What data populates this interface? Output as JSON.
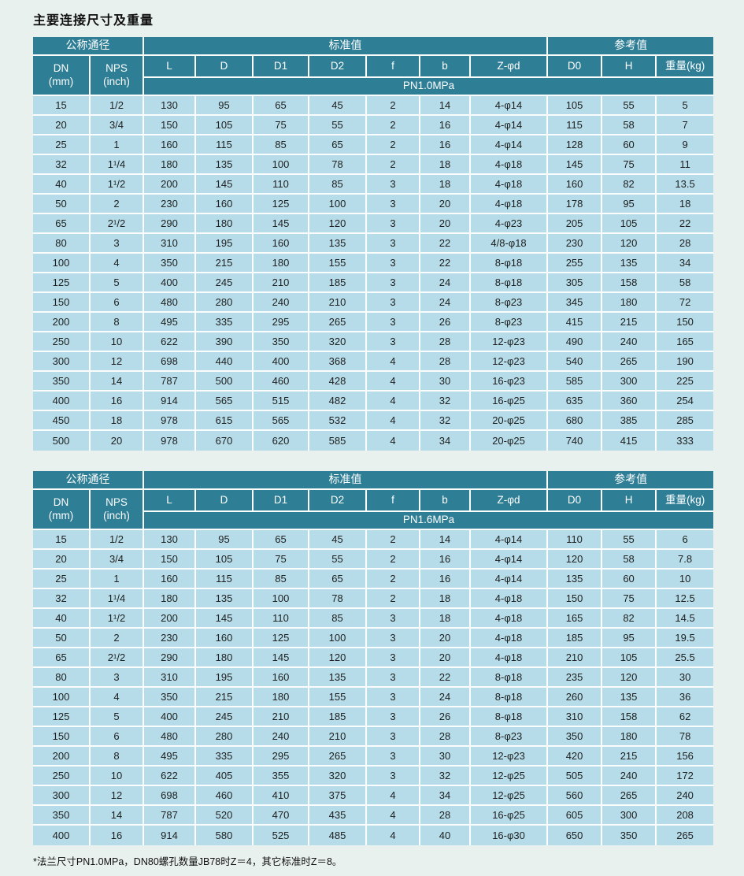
{
  "page": {
    "title": "主要连接尺寸及重量",
    "footnote": "*法兰尺寸PN1.0MPa，DN80螺孔数量JB78时Z＝4，其它标准时Z＝8。"
  },
  "tables": [
    {
      "pressure_class": "PN1.0MPa",
      "groups": {
        "nominal": "公称通径",
        "standard": "标准值",
        "reference": "参考值"
      },
      "columns": [
        "DN\n(mm)",
        "NPS\n(inch)",
        "L",
        "D",
        "D1",
        "D2",
        "f",
        "b",
        "Z-φd",
        "D0",
        "H",
        "重量(kg)"
      ],
      "rows": [
        [
          "15",
          "1/2",
          "130",
          "95",
          "65",
          "45",
          "2",
          "14",
          "4-φ14",
          "105",
          "55",
          "5"
        ],
        [
          "20",
          "3/4",
          "150",
          "105",
          "75",
          "55",
          "2",
          "16",
          "4-φ14",
          "115",
          "58",
          "7"
        ],
        [
          "25",
          "1",
          "160",
          "115",
          "85",
          "65",
          "2",
          "16",
          "4-φ14",
          "128",
          "60",
          "9"
        ],
        [
          "32",
          "1¹/4",
          "180",
          "135",
          "100",
          "78",
          "2",
          "18",
          "4-φ18",
          "145",
          "75",
          "11"
        ],
        [
          "40",
          "1¹/2",
          "200",
          "145",
          "110",
          "85",
          "3",
          "18",
          "4-φ18",
          "160",
          "82",
          "13.5"
        ],
        [
          "50",
          "2",
          "230",
          "160",
          "125",
          "100",
          "3",
          "20",
          "4-φ18",
          "178",
          "95",
          "18"
        ],
        [
          "65",
          "2¹/2",
          "290",
          "180",
          "145",
          "120",
          "3",
          "20",
          "4-φ23",
          "205",
          "105",
          "22"
        ],
        [
          "80",
          "3",
          "310",
          "195",
          "160",
          "135",
          "3",
          "22",
          "4/8-φ18",
          "230",
          "120",
          "28"
        ],
        [
          "100",
          "4",
          "350",
          "215",
          "180",
          "155",
          "3",
          "22",
          "8-φ18",
          "255",
          "135",
          "34"
        ],
        [
          "125",
          "5",
          "400",
          "245",
          "210",
          "185",
          "3",
          "24",
          "8-φ18",
          "305",
          "158",
          "58"
        ],
        [
          "150",
          "6",
          "480",
          "280",
          "240",
          "210",
          "3",
          "24",
          "8-φ23",
          "345",
          "180",
          "72"
        ],
        [
          "200",
          "8",
          "495",
          "335",
          "295",
          "265",
          "3",
          "26",
          "8-φ23",
          "415",
          "215",
          "150"
        ],
        [
          "250",
          "10",
          "622",
          "390",
          "350",
          "320",
          "3",
          "28",
          "12-φ23",
          "490",
          "240",
          "165"
        ],
        [
          "300",
          "12",
          "698",
          "440",
          "400",
          "368",
          "4",
          "28",
          "12-φ23",
          "540",
          "265",
          "190"
        ],
        [
          "350",
          "14",
          "787",
          "500",
          "460",
          "428",
          "4",
          "30",
          "16-φ23",
          "585",
          "300",
          "225"
        ],
        [
          "400",
          "16",
          "914",
          "565",
          "515",
          "482",
          "4",
          "32",
          "16-φ25",
          "635",
          "360",
          "254"
        ],
        [
          "450",
          "18",
          "978",
          "615",
          "565",
          "532",
          "4",
          "32",
          "20-φ25",
          "680",
          "385",
          "285"
        ],
        [
          "500",
          "20",
          "978",
          "670",
          "620",
          "585",
          "4",
          "34",
          "20-φ25",
          "740",
          "415",
          "333"
        ]
      ]
    },
    {
      "pressure_class": "PN1.6MPa",
      "groups": {
        "nominal": "公称通径",
        "standard": "标准值",
        "reference": "参考值"
      },
      "columns": [
        "DN\n(mm)",
        "NPS\n(inch)",
        "L",
        "D",
        "D1",
        "D2",
        "f",
        "b",
        "Z-φd",
        "D0",
        "H",
        "重量(kg)"
      ],
      "rows": [
        [
          "15",
          "1/2",
          "130",
          "95",
          "65",
          "45",
          "2",
          "14",
          "4-φ14",
          "110",
          "55",
          "6"
        ],
        [
          "20",
          "3/4",
          "150",
          "105",
          "75",
          "55",
          "2",
          "16",
          "4-φ14",
          "120",
          "58",
          "7.8"
        ],
        [
          "25",
          "1",
          "160",
          "115",
          "85",
          "65",
          "2",
          "16",
          "4-φ14",
          "135",
          "60",
          "10"
        ],
        [
          "32",
          "1¹/4",
          "180",
          "135",
          "100",
          "78",
          "2",
          "18",
          "4-φ18",
          "150",
          "75",
          "12.5"
        ],
        [
          "40",
          "1¹/2",
          "200",
          "145",
          "110",
          "85",
          "3",
          "18",
          "4-φ18",
          "165",
          "82",
          "14.5"
        ],
        [
          "50",
          "2",
          "230",
          "160",
          "125",
          "100",
          "3",
          "20",
          "4-φ18",
          "185",
          "95",
          "19.5"
        ],
        [
          "65",
          "2¹/2",
          "290",
          "180",
          "145",
          "120",
          "3",
          "20",
          "4-φ18",
          "210",
          "105",
          "25.5"
        ],
        [
          "80",
          "3",
          "310",
          "195",
          "160",
          "135",
          "3",
          "22",
          "8-φ18",
          "235",
          "120",
          "30"
        ],
        [
          "100",
          "4",
          "350",
          "215",
          "180",
          "155",
          "3",
          "24",
          "8-φ18",
          "260",
          "135",
          "36"
        ],
        [
          "125",
          "5",
          "400",
          "245",
          "210",
          "185",
          "3",
          "26",
          "8-φ18",
          "310",
          "158",
          "62"
        ],
        [
          "150",
          "6",
          "480",
          "280",
          "240",
          "210",
          "3",
          "28",
          "8-φ23",
          "350",
          "180",
          "78"
        ],
        [
          "200",
          "8",
          "495",
          "335",
          "295",
          "265",
          "3",
          "30",
          "12-φ23",
          "420",
          "215",
          "156"
        ],
        [
          "250",
          "10",
          "622",
          "405",
          "355",
          "320",
          "3",
          "32",
          "12-φ25",
          "505",
          "240",
          "172"
        ],
        [
          "300",
          "12",
          "698",
          "460",
          "410",
          "375",
          "4",
          "34",
          "12-φ25",
          "560",
          "265",
          "240"
        ],
        [
          "350",
          "14",
          "787",
          "520",
          "470",
          "435",
          "4",
          "28",
          "16-φ25",
          "605",
          "300",
          "208"
        ],
        [
          "400",
          "16",
          "914",
          "580",
          "525",
          "485",
          "4",
          "40",
          "16-φ30",
          "650",
          "350",
          "265"
        ]
      ]
    }
  ]
}
